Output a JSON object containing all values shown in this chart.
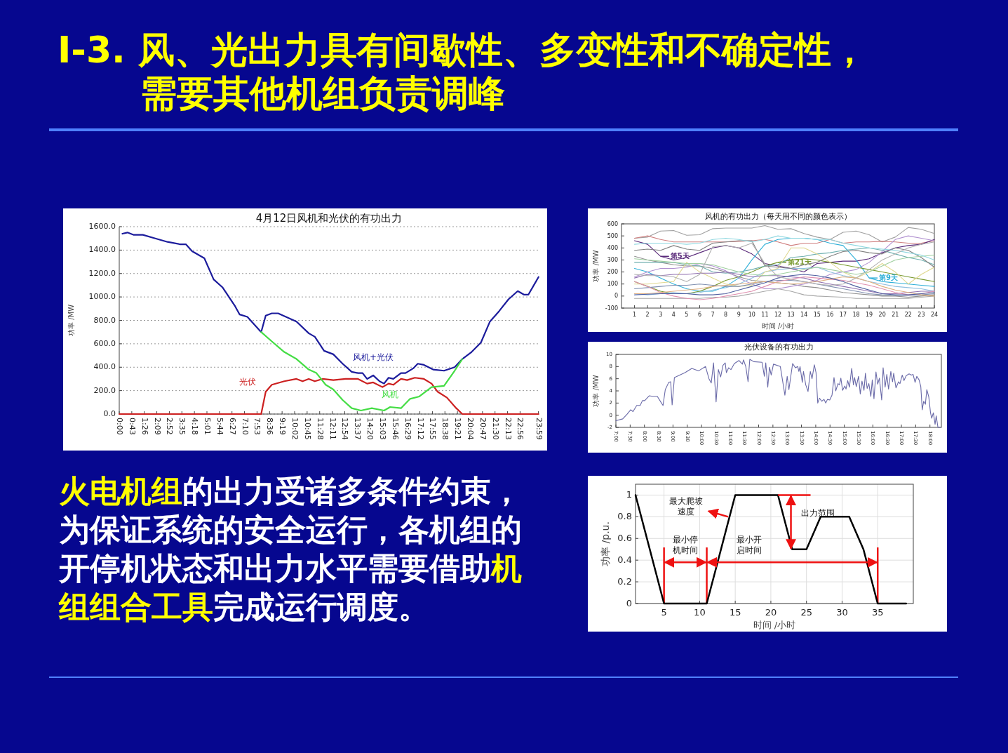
{
  "chart_data": [
    {
      "type": "other",
      "title": "I-3. 风、光出力具有间歇性、多变性和不确定性，需要其他机组负责调峰",
      "annotations": [
        "火电机组",
        "的出力受诸多条件约束，为保证系统的安全运行，各机组的开停机状态和出力水平需要借助",
        "机组组合工具",
        "完成运行调度。"
      ]
    },
    {
      "type": "line",
      "title": "4月12日风机和光伏的有功出力",
      "ylabel": "功率 /MW",
      "xlim": [
        0,
        24
      ],
      "ylim": [
        0,
        1600
      ],
      "grid": "y",
      "xticks": [
        {
          "value": 0,
          "label": "0:00"
        },
        {
          "value": 0.717,
          "label": "0:43"
        },
        {
          "value": 1.433,
          "label": "1:26"
        },
        {
          "value": 2.15,
          "label": "2:09"
        },
        {
          "value": 2.867,
          "label": "2:52"
        },
        {
          "value": 3.583,
          "label": "3:35"
        },
        {
          "value": 4.3,
          "label": "4:18"
        },
        {
          "value": 5.017,
          "label": "5:01"
        },
        {
          "value": 5.733,
          "label": "5:44"
        },
        {
          "value": 6.45,
          "label": "6:27"
        },
        {
          "value": 7.167,
          "label": "7:10"
        },
        {
          "value": 7.883,
          "label": "7:53"
        },
        {
          "value": 8.6,
          "label": "8:36"
        },
        {
          "value": 9.317,
          "label": "9:19"
        },
        {
          "value": 10.033,
          "label": "10:02"
        },
        {
          "value": 10.75,
          "label": "10:45"
        },
        {
          "value": 11.467,
          "label": "11:28"
        },
        {
          "value": 12.183,
          "label": "12:11"
        },
        {
          "value": 12.9,
          "label": "12:54"
        },
        {
          "value": 13.617,
          "label": "13:37"
        },
        {
          "value": 14.333,
          "label": "14:20"
        },
        {
          "value": 15.05,
          "label": "15:03"
        },
        {
          "value": 15.767,
          "label": "15:46"
        },
        {
          "value": 16.483,
          "label": "16:29"
        },
        {
          "value": 17.2,
          "label": "17:12"
        },
        {
          "value": 17.917,
          "label": "17:55"
        },
        {
          "value": 18.633,
          "label": "18:38"
        },
        {
          "value": 19.35,
          "label": "19:21"
        },
        {
          "value": 20.067,
          "label": "20:04"
        },
        {
          "value": 20.783,
          "label": "20:47"
        },
        {
          "value": 21.5,
          "label": "21:30"
        },
        {
          "value": 22.217,
          "label": "22:13"
        },
        {
          "value": 22.933,
          "label": "22:56"
        },
        {
          "value": 23.983,
          "label": "23:59"
        }
      ],
      "yticks": [
        {
          "value": 0,
          "label": "0.0"
        },
        {
          "value": 200,
          "label": "200.0"
        },
        {
          "value": 400,
          "label": "400.0"
        },
        {
          "value": 600,
          "label": "600.0"
        },
        {
          "value": 800,
          "label": "800.0"
        },
        {
          "value": 1000,
          "label": "1000.0"
        },
        {
          "value": 1200,
          "label": "1200.0"
        },
        {
          "value": 1400,
          "label": "1400.0"
        },
        {
          "value": 1600,
          "label": "1600.0"
        }
      ],
      "series": [
        {
          "name": "风机+光伏",
          "color": "#1c1c9c",
          "x": [
            0.18,
            0.47,
            0.83,
            1.35,
            2.06,
            2.76,
            3.46,
            3.81,
            4.17,
            4.87,
            5.4,
            5.92,
            6.63,
            6.89,
            7.33,
            8.12,
            8.38,
            8.73,
            9.09,
            10.14,
            10.84,
            11.19,
            11.72,
            12.25,
            12.78,
            13.3,
            13.66,
            13.92,
            14.18,
            14.53,
            14.89,
            15.15,
            15.41,
            15.68,
            16.12,
            16.38,
            16.82,
            17.08,
            17.43,
            17.96,
            18.58,
            19.19,
            19.63,
            20.16,
            20.69,
            21.21,
            21.74,
            22.27,
            22.8,
            23.15,
            23.41,
            23.99
          ],
          "values": [
            1540,
            1550,
            1530,
            1530,
            1500,
            1470,
            1450,
            1450,
            1390,
            1330,
            1150,
            1080,
            920,
            850,
            830,
            700,
            840,
            860,
            860,
            790,
            690,
            660,
            540,
            510,
            430,
            360,
            350,
            350,
            300,
            330,
            280,
            260,
            310,
            300,
            350,
            350,
            390,
            430,
            420,
            380,
            370,
            400,
            470,
            530,
            610,
            790,
            880,
            980,
            1050,
            1020,
            1020,
            1170
          ]
        },
        {
          "name": "光伏",
          "color": "#cc2020",
          "x": [
            0,
            8.12,
            8.38,
            8.73,
            9.44,
            10.14,
            10.49,
            10.84,
            11.19,
            11.63,
            12.25,
            12.95,
            13.66,
            14.18,
            14.53,
            15.06,
            15.41,
            15.68,
            16.12,
            16.47,
            16.91,
            17.43,
            17.87,
            18.22,
            18.75,
            19.28,
            19.63,
            23.99
          ],
          "values": [
            0,
            0,
            190,
            250,
            280,
            300,
            280,
            300,
            280,
            300,
            290,
            300,
            300,
            260,
            270,
            230,
            260,
            250,
            300,
            290,
            310,
            300,
            260,
            190,
            140,
            50,
            0,
            0
          ]
        },
        {
          "name": "风机",
          "color": "#44dd44",
          "x": [
            8.12,
            8.73,
            9.44,
            10.14,
            10.84,
            11.28,
            11.81,
            12.25,
            12.78,
            13.3,
            13.83,
            14.45,
            15.15,
            15.5,
            16.12,
            16.64,
            17.17,
            17.87,
            18.58,
            19.19,
            19.63
          ],
          "values": [
            700,
            620,
            530,
            470,
            380,
            350,
            250,
            210,
            120,
            50,
            30,
            50,
            30,
            60,
            50,
            130,
            150,
            230,
            240,
            370,
            470
          ]
        }
      ]
    },
    {
      "type": "line",
      "title": "风机的有功出力（每天用不同的颜色表示）",
      "legend": "center",
      "xlabel": "时间 /小时",
      "ylabel": "功率 /MW",
      "xlim": [
        0,
        24
      ],
      "ylim": [
        -100,
        600
      ],
      "xticks": [
        1,
        2,
        3,
        4,
        5,
        6,
        7,
        8,
        9,
        10,
        11,
        12,
        13,
        14,
        15,
        16,
        17,
        18,
        19,
        20,
        21,
        22,
        23,
        24
      ],
      "yticks": [
        -100,
        0,
        100,
        200,
        300,
        400,
        500,
        600
      ],
      "x": [
        1,
        2,
        3,
        4,
        5,
        6,
        7,
        8,
        9,
        10,
        11,
        12,
        13,
        14,
        15,
        16,
        17,
        18,
        19,
        20,
        21,
        22,
        23,
        24
      ],
      "series": [
        {
          "color": "#a0a0a0",
          "values": [
            480,
            490,
            540,
            545,
            505,
            510,
            560,
            565,
            565,
            565,
            585,
            555,
            560,
            520,
            490,
            470,
            530,
            540,
            510,
            450,
            490,
            570,
            555,
            520
          ]
        },
        {
          "color": "#d08080",
          "values": [
            480,
            500,
            470,
            450,
            450,
            450,
            450,
            450,
            455,
            460,
            470,
            450,
            420,
            440,
            440,
            470,
            440,
            450,
            450,
            455,
            450,
            440,
            440,
            460
          ]
        },
        {
          "name": "第5天",
          "color": "#5a2a7a",
          "values": [
            460,
            430,
            330,
            300,
            320,
            360,
            400,
            420,
            400,
            350,
            270,
            250,
            230,
            200,
            270,
            280,
            290,
            290,
            310,
            360,
            400,
            420,
            430,
            470
          ]
        },
        {
          "name": "第9天",
          "color": "#30b0d8",
          "values": [
            230,
            200,
            150,
            100,
            60,
            40,
            40,
            80,
            150,
            300,
            430,
            470,
            480,
            480,
            470,
            440,
            420,
            300,
            150,
            120,
            110,
            100,
            90,
            80
          ]
        },
        {
          "name": "第21天",
          "color": "#7a9a30",
          "values": [
            120,
            80,
            40,
            20,
            20,
            40,
            80,
            130,
            160,
            200,
            250,
            280,
            300,
            310,
            300,
            280,
            260,
            240,
            220,
            200,
            180,
            160,
            140,
            120
          ]
        },
        {
          "color": "#909090",
          "values": [
            330,
            300,
            280,
            260,
            250,
            250,
            230,
            200,
            160,
            130,
            120,
            110,
            100,
            80,
            70,
            50,
            30,
            20,
            10,
            0,
            0,
            -10,
            0,
            10
          ]
        },
        {
          "color": "#b090d0",
          "values": [
            160,
            200,
            230,
            230,
            240,
            270,
            250,
            210,
            150,
            100,
            60,
            60,
            80,
            100,
            130,
            180,
            200,
            220,
            280,
            370,
            470,
            500,
            480,
            460
          ]
        },
        {
          "color": "#a8a8a8",
          "values": [
            -20,
            -20,
            -20,
            -20,
            -20,
            -20,
            -10,
            -10,
            0,
            20,
            40,
            60,
            40,
            10,
            0,
            -5,
            -10,
            -20,
            -20,
            -20,
            -20,
            -20,
            -10,
            0
          ]
        },
        {
          "color": "#90c0e0",
          "values": [
            20,
            10,
            20,
            30,
            20,
            30,
            50,
            70,
            100,
            150,
            200,
            220,
            230,
            230,
            240,
            200,
            170,
            150,
            120,
            100,
            80,
            70,
            60,
            40
          ]
        },
        {
          "color": "#70b0b0",
          "values": [
            280,
            280,
            280,
            280,
            260,
            250,
            200,
            190,
            200,
            220,
            250,
            260,
            320,
            330,
            350,
            360,
            380,
            390,
            400,
            380,
            350,
            320,
            300,
            260
          ]
        },
        {
          "color": "#e0d890",
          "values": [
            100,
            100,
            110,
            120,
            280,
            200,
            150,
            100,
            80,
            90,
            200,
            230,
            400,
            400,
            350,
            280,
            200,
            150,
            200,
            270,
            200,
            100,
            180,
            240
          ]
        },
        {
          "color": "#8090b0",
          "values": [
            60,
            70,
            80,
            90,
            90,
            100,
            90,
            80,
            80,
            100,
            120,
            130,
            130,
            120,
            100,
            80,
            60,
            40,
            20,
            10,
            5,
            5,
            10,
            20
          ]
        },
        {
          "color": "#9070b0",
          "values": [
            150,
            180,
            170,
            180,
            180,
            190,
            190,
            200,
            180,
            160,
            170,
            170,
            160,
            150,
            120,
            100,
            80,
            60,
            40,
            20,
            20,
            30,
            40,
            40
          ]
        },
        {
          "color": "#e090b0",
          "values": [
            120,
            80,
            30,
            0,
            -20,
            -30,
            -20,
            0,
            20,
            40,
            80,
            120,
            140,
            160,
            150,
            140,
            130,
            110,
            90,
            60,
            30,
            10,
            20,
            40
          ]
        },
        {
          "color": "#808080",
          "values": [
            380,
            390,
            380,
            420,
            390,
            380,
            440,
            450,
            460,
            460,
            250,
            240,
            230,
            260,
            280,
            330,
            370,
            380,
            360,
            350,
            400,
            380,
            320,
            240
          ]
        },
        {
          "color": "#a0d0a0",
          "values": [
            310,
            300,
            290,
            280,
            270,
            270,
            260,
            230,
            200,
            180,
            170,
            180,
            200,
            220,
            240,
            220,
            200,
            180,
            200,
            250,
            300,
            320,
            330,
            340
          ]
        },
        {
          "color": "#e0b080",
          "values": [
            20,
            20,
            30,
            40,
            50,
            60,
            80,
            90,
            100,
            110,
            120,
            110,
            100,
            110,
            120,
            140,
            160,
            150,
            120,
            80,
            50,
            30,
            10,
            0
          ]
        },
        {
          "color": "#90d8e0",
          "values": [
            430,
            440,
            440,
            440,
            430,
            440,
            470,
            480,
            470,
            450,
            470,
            500,
            480,
            480,
            470,
            470,
            440,
            420,
            400,
            390,
            380,
            360,
            340,
            300
          ]
        },
        {
          "color": "#5060a0",
          "values": [
            10,
            15,
            20,
            20,
            20,
            10,
            10,
            20,
            50,
            80,
            110,
            150,
            170,
            180,
            170,
            150,
            120,
            80,
            50,
            20,
            10,
            10,
            20,
            30
          ]
        },
        {
          "color": "#b0b0b0",
          "values": [
            180,
            170,
            170,
            160,
            120,
            180,
            410,
            420,
            400,
            440,
            270,
            160,
            140,
            120,
            100,
            90,
            100,
            150,
            220,
            300,
            350,
            400,
            430,
            450
          ]
        }
      ]
    },
    {
      "type": "line",
      "title": "光伏设备的有功出力",
      "ylabel": "功率 /MW",
      "xlim": [
        7,
        18.4
      ],
      "ylim": [
        -2,
        10
      ],
      "yticks": [
        -2,
        0,
        2,
        4,
        6,
        8,
        10
      ],
      "xticks": [
        {
          "value": 7,
          "label": "7:00"
        },
        {
          "value": 7.5,
          "label": "7:30"
        },
        {
          "value": 8,
          "label": "8:00"
        },
        {
          "value": 8.5,
          "label": "8:30"
        },
        {
          "value": 9,
          "label": "9:00"
        },
        {
          "value": 9.5,
          "label": "9:30"
        },
        {
          "value": 10,
          "label": "10:00"
        },
        {
          "value": 10.5,
          "label": "10:30"
        },
        {
          "value": 11,
          "label": "11:00"
        },
        {
          "value": 11.5,
          "label": "11:30"
        },
        {
          "value": 12,
          "label": "12:00"
        },
        {
          "value": 12.5,
          "label": "12:30"
        },
        {
          "value": 13,
          "label": "13:00"
        },
        {
          "value": 13.5,
          "label": "13:30"
        },
        {
          "value": 14,
          "label": "14:00"
        },
        {
          "value": 14.5,
          "label": "14:30"
        },
        {
          "value": 15,
          "label": "15:00"
        },
        {
          "value": 15.5,
          "label": "15:30"
        },
        {
          "value": 16,
          "label": "16:00"
        },
        {
          "value": 16.5,
          "label": "16:30"
        },
        {
          "value": 17,
          "label": "17:00"
        },
        {
          "value": 17.5,
          "label": "17:30"
        },
        {
          "value": 18,
          "label": "18:00"
        }
      ],
      "series": [
        {
          "color": "#6a6aa8",
          "x": [
            7.0,
            7.24,
            7.4,
            7.52,
            7.6,
            7.73,
            7.85,
            7.93,
            8.01,
            8.17,
            8.29,
            8.45,
            8.57,
            8.65,
            8.73,
            8.85,
            8.92,
            8.97,
            9.05,
            9.42,
            9.66,
            9.9,
            10.14,
            10.26,
            10.34,
            10.42,
            10.51,
            10.59,
            10.67,
            10.75,
            10.83,
            10.87,
            10.95,
            11.03,
            11.15,
            11.31,
            11.43,
            11.47,
            11.55,
            11.63,
            11.69,
            11.83,
            12.12,
            12.2,
            12.25,
            12.32,
            12.38,
            12.44,
            12.52,
            12.76,
            12.92,
            13.0,
            13.06,
            13.19,
            13.29,
            13.37,
            13.41,
            13.45,
            13.53,
            13.57,
            13.65,
            13.73,
            13.81,
            13.87,
            13.95,
            14.01,
            14.07,
            14.13,
            14.21,
            14.29,
            14.35,
            14.41,
            14.49,
            14.57,
            14.64,
            14.7,
            14.78,
            14.83,
            14.88,
            14.94,
            15.02,
            15.06,
            15.12,
            15.18,
            15.26,
            15.32,
            15.36,
            15.42,
            15.5,
            15.56,
            15.62,
            15.69,
            15.74,
            15.8,
            15.86,
            15.93,
            15.98,
            16.04,
            16.11,
            16.17,
            16.23,
            16.31,
            16.36,
            16.43,
            16.49,
            16.55,
            16.63,
            16.69,
            16.73,
            16.81,
            16.9,
            16.95,
            17.03,
            17.09,
            17.17,
            17.27,
            17.35,
            17.41,
            17.48,
            17.54,
            17.62,
            17.68,
            17.73,
            17.78,
            17.84,
            17.89,
            17.96,
            18.02,
            18.06,
            18.12,
            18.18,
            18.22,
            18.28,
            18.36
          ],
          "values": [
            -0.9,
            -0.6,
            0.2,
            0.9,
            0.6,
            1.6,
            1.6,
            2.4,
            2.4,
            3.2,
            3.1,
            3.1,
            2.2,
            1.6,
            4.2,
            5.4,
            5.5,
            1.7,
            6.2,
            7.0,
            7.7,
            7.3,
            8.0,
            6.0,
            5.3,
            8.6,
            2.2,
            7.5,
            6.3,
            8.2,
            8.6,
            7.0,
            7.8,
            7.5,
            8.5,
            9.0,
            8.4,
            9.1,
            8.0,
            5.5,
            9.2,
            8.8,
            8.7,
            6.4,
            8.6,
            4.6,
            7.9,
            6.6,
            8.4,
            8.0,
            3.3,
            6.4,
            4.2,
            8.5,
            7.8,
            8.0,
            7.2,
            8.0,
            5.4,
            7.2,
            5.0,
            3.9,
            7.2,
            6.0,
            8.3,
            7.0,
            2.0,
            2.8,
            2.3,
            2.6,
            2.0,
            2.6,
            2.5,
            3.3,
            6.2,
            4.0,
            5.2,
            5.0,
            6.1,
            4.1,
            4.8,
            4.3,
            5.7,
            4.6,
            7.7,
            5.0,
            6.2,
            4.7,
            6.4,
            3.5,
            5.6,
            4.1,
            6.9,
            4.4,
            5.2,
            3.1,
            5.8,
            2.7,
            7.1,
            5.1,
            6.1,
            2.5,
            7.8,
            4.6,
            6.7,
            4.3,
            7.2,
            5.5,
            6.9,
            4.5,
            5.5,
            5.2,
            6.6,
            5.7,
            6.5,
            6.8,
            6.6,
            6.7,
            5.4,
            6.4,
            5.8,
            4.7,
            0.9,
            2.3,
            1.8,
            4.2,
            3.0,
            0.4,
            -0.5,
            0.4,
            -1.5,
            -0.1,
            -2.0,
            -2.0
          ]
        }
      ]
    },
    {
      "type": "line",
      "xlabel": "时间 /小时",
      "ylabel": "功率 /p.u.",
      "xlim": [
        1,
        40
      ],
      "ylim": [
        0,
        1.1
      ],
      "grid": true,
      "xticks": [
        5,
        10,
        15,
        20,
        25,
        30,
        35
      ],
      "yticks": [
        0,
        0.2,
        0.4,
        0.6,
        0.8,
        1
      ],
      "series": [
        {
          "color": "#000000",
          "x": [
            1,
            5,
            11,
            15,
            21,
            23,
            25,
            27,
            31,
            33,
            35,
            39
          ],
          "values": [
            1,
            0,
            0,
            1,
            1,
            0.5,
            0.5,
            0.8,
            0.8,
            0.5,
            0,
            0
          ]
        }
      ],
      "ref_lines": [
        {
          "axis": "x",
          "value": 5,
          "color": "#ee1111"
        },
        {
          "axis": "x",
          "value": 11,
          "color": "#ee1111"
        },
        {
          "axis": "x",
          "value": 35,
          "color": "#ee1111"
        }
      ],
      "annotations": [
        {
          "text": "最大爬坡速度",
          "x": 14.2,
          "y": 0.8
        },
        "出力范围",
        "最小停机时间",
        "最小开启时间"
      ]
    }
  ]
}
